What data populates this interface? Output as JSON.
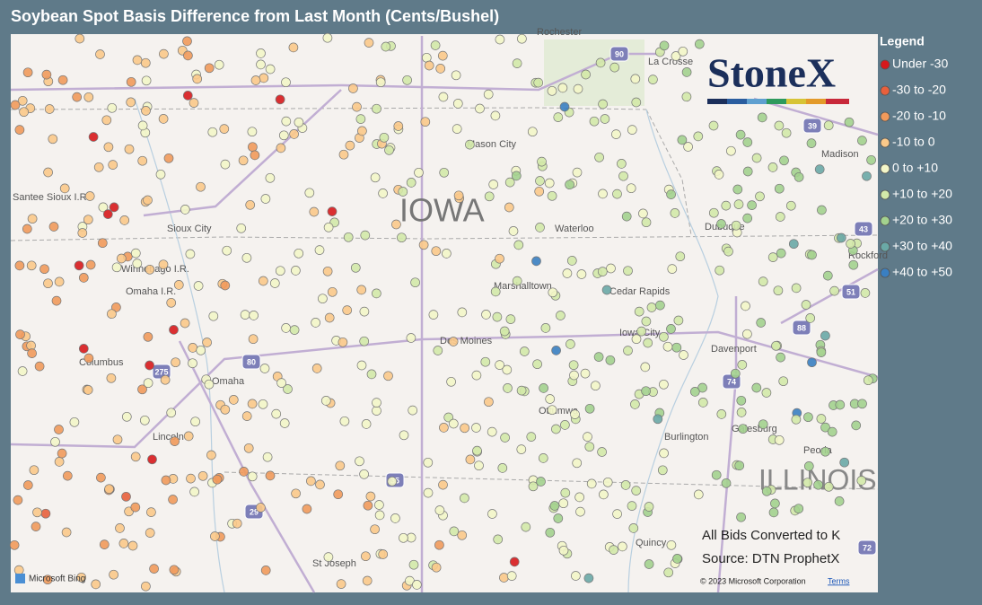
{
  "title": "Soybean Spot Basis Difference from Last Month (Cents/Bushel)",
  "legend": {
    "title": "Legend",
    "items": [
      {
        "label": "Under -30",
        "color": "#d7191c"
      },
      {
        "label": "-30 to -20",
        "color": "#e8603c"
      },
      {
        "label": "-20 to -10",
        "color": "#f19a5b"
      },
      {
        "label": "-10 to 0",
        "color": "#fbc98a"
      },
      {
        "label": "0 to +10",
        "color": "#f3f6c8"
      },
      {
        "label": "+10 to +20",
        "color": "#d3e9a9"
      },
      {
        "label": "+20 to +30",
        "color": "#a3d28e"
      },
      {
        "label": "+30 to +40",
        "color": "#6aa9a6"
      },
      {
        "label": "+40 to +50",
        "color": "#3a7fc1"
      }
    ]
  },
  "logo": "StoneX",
  "notes": [
    "All Bids Converted to K",
    "Source: DTN ProphetX"
  ],
  "map": {
    "state_labels": [
      "IOWA",
      "ILLINOIS"
    ],
    "places": [
      "Rochester",
      "La Crosse",
      "Madison",
      "Mason City",
      "Waterloo",
      "Dubuque",
      "Sioux City",
      "Cedar Rapids",
      "Iowa City",
      "Davenport",
      "Des Moines",
      "Marshalltown",
      "Ottumwa",
      "Omaha",
      "Lincoln",
      "Columbus",
      "St Joseph",
      "Galesburg",
      "Burlington",
      "Peoria",
      "Quincy",
      "Rockford",
      "Santee Sioux I.R.",
      "Winnebago I.R.",
      "Omaha I.R."
    ],
    "shields": [
      "90",
      "35",
      "80",
      "29",
      "74",
      "88",
      "39",
      "43",
      "51",
      "72",
      "275"
    ],
    "attribution": "Microsoft Bing",
    "copyright": "© 2023 Microsoft Corporation",
    "terms": "Terms"
  }
}
